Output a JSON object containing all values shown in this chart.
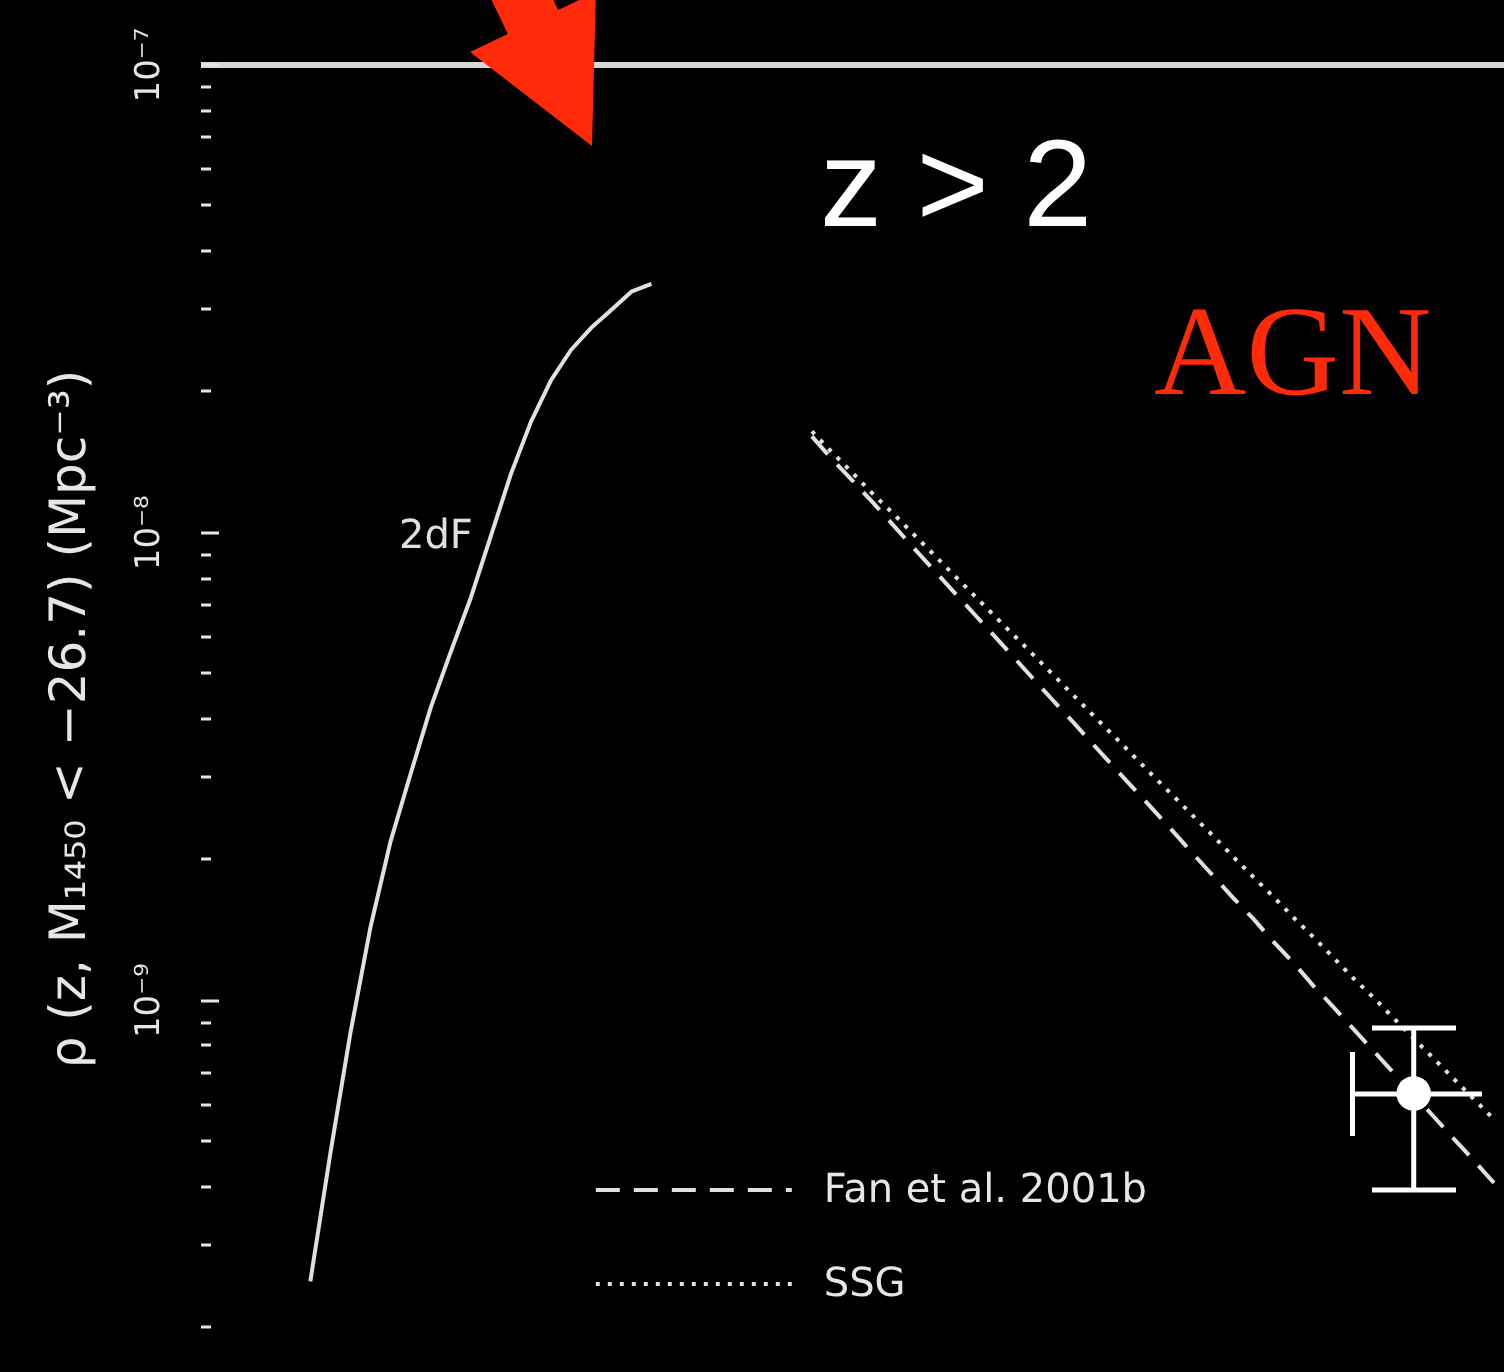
{
  "chart_data": {
    "type": "line",
    "ylabel": "ρ (z, M₁₄₅₀ < −26.7) (Mpc⁻³)",
    "annotations": [
      "z > 2",
      "AGN"
    ],
    "categories": [
      null,
      null,
      null,
      null,
      null,
      null,
      null,
      null,
      null,
      null,
      null,
      null,
      null,
      null,
      null,
      null,
      null,
      null,
      null,
      null,
      null,
      null,
      null,
      null,
      null,
      null,
      null,
      null,
      null,
      null,
      null,
      null,
      null,
      null,
      null,
      null,
      null,
      null,
      null,
      null,
      null,
      null,
      null,
      null,
      null,
      null,
      null,
      null,
      null,
      null,
      null,
      null,
      null,
      null,
      null,
      null,
      null,
      null,
      null,
      null,
      null,
      null,
      null,
      null,
      null
    ],
    "series": [
      {
        "name": "2dF",
        "line_style": "solid",
        "color": "#e0e0e0",
        "values": [
          null,
          null,
          null,
          null,
          null,
          2.5e-10,
          4.7e-10,
          8.5e-10,
          1.43e-09,
          2.18e-09,
          3.04e-09,
          4.21e-09,
          5.54e-09,
          7.23e-09,
          9.8e-09,
          1.33e-08,
          1.72e-08,
          2.11e-08,
          2.45e-08,
          2.73e-08,
          2.98e-08,
          3.26e-08,
          3.39e-08,
          null,
          null,
          null,
          null,
          null,
          null,
          null,
          null,
          null,
          null,
          null,
          null,
          null,
          null,
          null,
          null,
          null,
          null,
          null,
          null,
          null,
          null,
          null,
          null,
          null,
          null,
          null,
          null,
          null,
          null,
          null,
          null,
          null,
          null,
          null,
          null,
          null,
          null,
          null,
          null,
          null,
          null
        ]
      },
      {
        "name": "Fan et al. 2001b",
        "line_style": "dashed",
        "color": "#e0e0e0",
        "values": [
          null,
          null,
          null,
          null,
          null,
          null,
          null,
          null,
          null,
          null,
          null,
          null,
          null,
          null,
          null,
          null,
          null,
          null,
          null,
          null,
          null,
          null,
          null,
          null,
          null,
          null,
          null,
          null,
          null,
          null,
          1.6e-08,
          1.43e-08,
          1.29e-08,
          1.16e-08,
          1.04e-08,
          9.31e-09,
          8.36e-09,
          7.5e-09,
          6.74e-09,
          6.05e-09,
          5.43e-09,
          4.87e-09,
          4.37e-09,
          3.93e-09,
          3.52e-09,
          3.16e-09,
          2.84e-09,
          2.55e-09,
          2.29e-09,
          2.05e-09,
          1.84e-09,
          1.65e-09,
          1.49e-09,
          1.33e-09,
          1.2e-09,
          1.07e-09,
          9.64e-10,
          8.65e-10,
          7.77e-10,
          6.97e-10,
          6.26e-10,
          5.62e-10,
          5.04e-10,
          4.53e-10,
          4.06e-10
        ]
      },
      {
        "name": "SSG",
        "line_style": "dotted",
        "color": "#e0e0e0",
        "values": [
          null,
          null,
          null,
          null,
          null,
          null,
          null,
          null,
          null,
          null,
          null,
          null,
          null,
          null,
          null,
          null,
          null,
          null,
          null,
          null,
          null,
          null,
          null,
          null,
          null,
          null,
          null,
          null,
          null,
          null,
          1.64e-08,
          1.48e-08,
          1.34e-08,
          1.21e-08,
          1.1e-08,
          9.95e-09,
          9.01e-09,
          8.15e-09,
          7.38e-09,
          6.68e-09,
          6.05e-09,
          5.48e-09,
          4.96e-09,
          4.49e-09,
          4.06e-09,
          3.68e-09,
          3.33e-09,
          3.01e-09,
          2.73e-09,
          2.47e-09,
          2.24e-09,
          2.02e-09,
          1.83e-09,
          1.66e-09,
          1.5e-09,
          1.36e-09,
          1.23e-09,
          1.11e-09,
          1.01e-09,
          9.13e-10,
          8.26e-10,
          7.48e-10,
          6.77e-10,
          6.13e-10,
          5.55e-10
        ]
      },
      {
        "type": "scatter",
        "marker": "circle",
        "color": "#ffffff",
        "values": [
          null,
          null,
          null,
          null,
          null,
          null,
          null,
          null,
          null,
          null,
          null,
          null,
          null,
          null,
          null,
          null,
          null,
          null,
          null,
          null,
          null,
          null,
          null,
          null,
          null,
          null,
          null,
          null,
          null,
          null,
          null,
          null,
          null,
          null,
          null,
          null,
          null,
          null,
          null,
          null,
          null,
          null,
          null,
          null,
          null,
          null,
          null,
          null,
          null,
          null,
          null,
          null,
          null,
          null,
          null,
          null,
          null,
          null,
          null,
          null,
          6.3e-10,
          null,
          null,
          null,
          null
        ],
        "errors": [
          null,
          null,
          null,
          null,
          null,
          null,
          null,
          null,
          null,
          null,
          null,
          null,
          null,
          null,
          null,
          null,
          null,
          null,
          null,
          null,
          null,
          null,
          null,
          null,
          null,
          null,
          null,
          null,
          null,
          null,
          null,
          null,
          null,
          null,
          null,
          null,
          null,
          null,
          null,
          null,
          null,
          null,
          null,
          null,
          null,
          null,
          null,
          null,
          null,
          null,
          null,
          null,
          null,
          null,
          null,
          null,
          null,
          null,
          null,
          null,
          [
            3.9e-10,
            8.7e-10
          ],
          null,
          null,
          null,
          null
        ]
      }
    ],
    "ylim": [
      1.6e-10,
      1e-07
    ],
    "yticks": [
      {
        "value": 2e-10,
        "label": null
      },
      {
        "value": 3e-10,
        "label": null
      },
      {
        "value": 4e-10,
        "label": null
      },
      {
        "value": 5e-10,
        "label": null
      },
      {
        "value": 6e-10,
        "label": null
      },
      {
        "value": 7e-10,
        "label": null
      },
      {
        "value": 8e-10,
        "label": null
      },
      {
        "value": 9e-10,
        "label": null
      },
      {
        "value": 1e-09,
        "label": "10⁻⁹"
      },
      {
        "value": 2e-09,
        "label": null
      },
      {
        "value": 3e-09,
        "label": null
      },
      {
        "value": 4e-09,
        "label": null
      },
      {
        "value": 5e-09,
        "label": null
      },
      {
        "value": 6e-09,
        "label": null
      },
      {
        "value": 7e-09,
        "label": null
      },
      {
        "value": 8e-09,
        "label": null
      },
      {
        "value": 9e-09,
        "label": null
      },
      {
        "value": 1e-08,
        "label": "10⁻⁸"
      },
      {
        "value": 2e-08,
        "label": null
      },
      {
        "value": 3e-08,
        "label": null
      },
      {
        "value": 4e-08,
        "label": null
      },
      {
        "value": 5e-08,
        "label": null
      },
      {
        "value": 6e-08,
        "label": null
      },
      {
        "value": 7e-08,
        "label": null
      },
      {
        "value": 8e-08,
        "label": null
      },
      {
        "value": 9e-08,
        "label": null
      },
      {
        "value": 1e-07,
        "label": "10⁻⁷"
      }
    ],
    "log": true,
    "legend": "bottom",
    "tick_labels": "y"
  }
}
